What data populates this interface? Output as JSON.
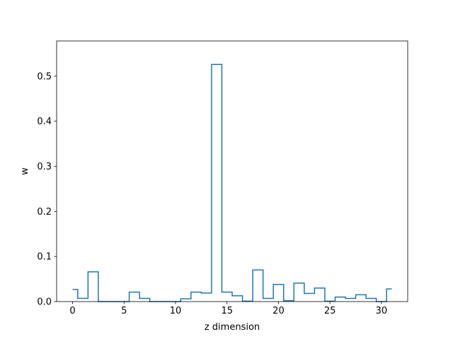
{
  "chart_data": {
    "type": "line",
    "drawstyle": "steps-mid",
    "title": "",
    "xlabel": "z dimension",
    "ylabel": "w",
    "xlim": [
      -1.55,
      32.55
    ],
    "ylim": [
      0,
      0.578
    ],
    "xticks": [
      0,
      5,
      10,
      15,
      20,
      25,
      30
    ],
    "yticks": [
      0.0,
      0.1,
      0.2,
      0.3,
      0.4,
      0.5
    ],
    "ytick_labels": [
      "0.0",
      "0.1",
      "0.2",
      "0.3",
      "0.4",
      "0.5"
    ],
    "grid": false,
    "series": [
      {
        "color": "#1f77b4",
        "x": [
          0,
          1,
          2,
          3,
          4,
          5,
          6,
          7,
          8,
          9,
          10,
          11,
          12,
          13,
          14,
          15,
          16,
          17,
          18,
          19,
          20,
          21,
          22,
          23,
          24,
          25,
          26,
          27,
          28,
          29,
          30,
          31
        ],
        "values": [
          0.027,
          0.007,
          0.066,
          0.0,
          0.0,
          0.0,
          0.021,
          0.007,
          0.0,
          0.0,
          0.0,
          0.006,
          0.021,
          0.019,
          0.526,
          0.021,
          0.013,
          0.001,
          0.07,
          0.007,
          0.038,
          0.002,
          0.041,
          0.018,
          0.03,
          0.001,
          0.01,
          0.007,
          0.015,
          0.007,
          0.0,
          0.028
        ]
      }
    ]
  }
}
